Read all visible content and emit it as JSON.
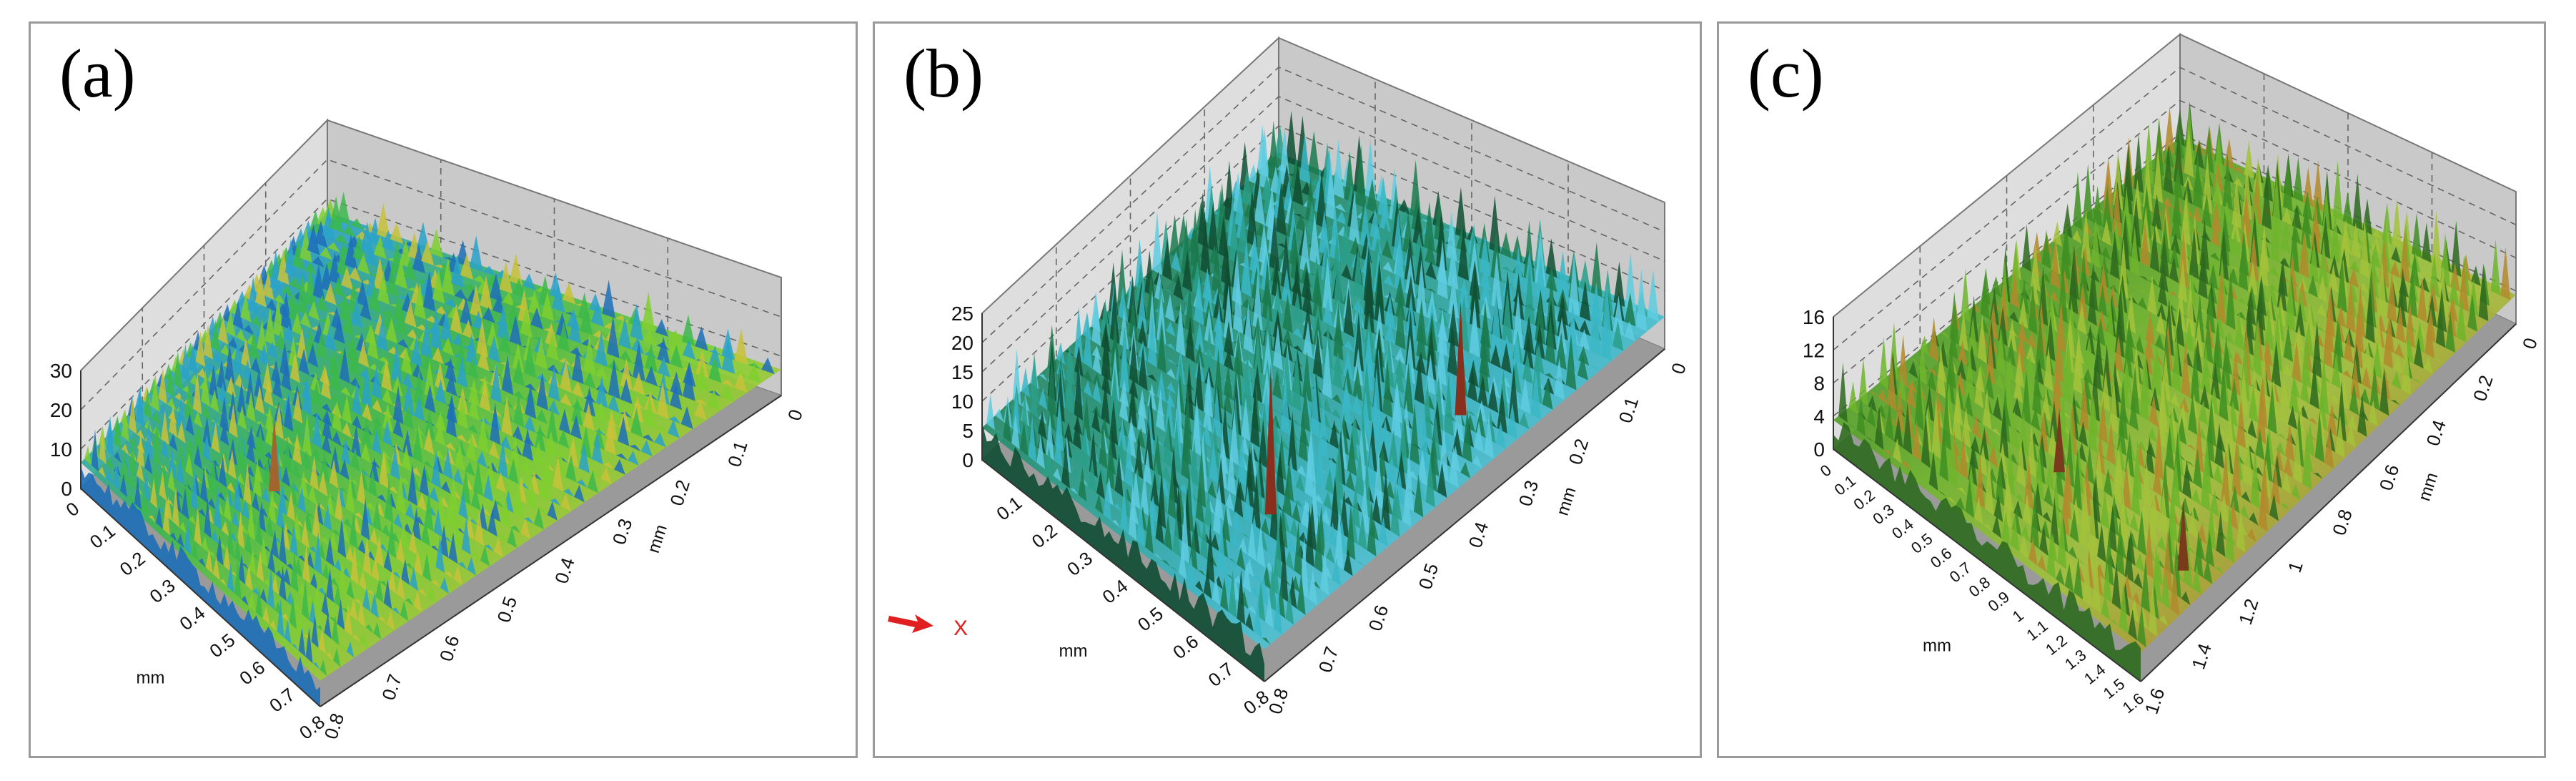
{
  "panels": [
    {
      "label": "(a)",
      "z_ticks": [
        "30",
        "20",
        "10",
        "0"
      ],
      "x_ticks": [
        "0",
        "0.1",
        "0.2",
        "0.3",
        "0.4",
        "0.5",
        "0.6",
        "0.7",
        "0.8"
      ],
      "y_ticks": [
        "0",
        "0.1",
        "0.2",
        "0.3",
        "0.4",
        "0.5",
        "0.6",
        "0.7",
        "0.8"
      ],
      "x_unit": "mm",
      "y_unit": "mm",
      "surface_colors": [
        "#1d6fb8",
        "#2aa2c9",
        "#3cb84a",
        "#7fcf2f",
        "#c8c23a",
        "#a2652e"
      ]
    },
    {
      "label": "(b)",
      "z_ticks": [
        "25",
        "20",
        "15",
        "10",
        "5",
        "0"
      ],
      "x_ticks": [
        "0.1",
        "0.2",
        "0.3",
        "0.4",
        "0.5",
        "0.6",
        "0.7",
        "0.8"
      ],
      "y_ticks": [
        "0",
        "0.1",
        "0.2",
        "0.3",
        "0.4",
        "0.5",
        "0.6",
        "0.7",
        "0.8"
      ],
      "x_unit": "mm",
      "y_unit": "mm",
      "orientation_label": "X",
      "surface_colors": [
        "#0f4d33",
        "#1b7a4f",
        "#2a9f8a",
        "#39b7c7",
        "#5fcde0",
        "#8a2f1e"
      ]
    },
    {
      "label": "(c)",
      "z_ticks": [
        "16",
        "12",
        "8",
        "4",
        "0"
      ],
      "x_ticks": [
        "0",
        "0.1",
        "0.2",
        "0.3",
        "0.4",
        "0.5",
        "0.6",
        "0.7",
        "0.8",
        "0.9",
        "1",
        "1.1",
        "1.2",
        "1.3",
        "1.4",
        "1.5",
        "1.6"
      ],
      "y_ticks": [
        "0",
        "0.2",
        "0.4",
        "0.6",
        "0.8",
        "1",
        "1.2",
        "1.4",
        "1.6"
      ],
      "x_unit": "mm",
      "y_unit": "mm",
      "surface_colors": [
        "#2e6a1f",
        "#3f8f22",
        "#6fb52c",
        "#a3c23a",
        "#b28a2c",
        "#7a3a1c"
      ]
    }
  ]
}
